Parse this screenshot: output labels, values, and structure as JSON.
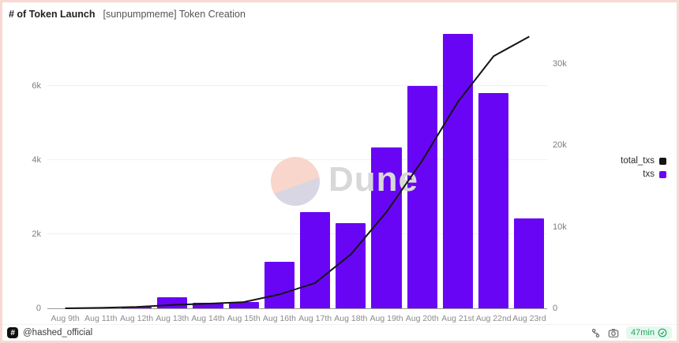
{
  "header": {
    "title": "# of Token Launch",
    "subtitle": "[sunpumpmeme] Token Creation"
  },
  "watermark": {
    "text": "Dune"
  },
  "chart_data": {
    "type": "bar",
    "title": "[sunpumpmeme] Token Creation",
    "categories": [
      "Aug 9th",
      "Aug 11th",
      "Aug 12th",
      "Aug 13th",
      "Aug 14th",
      "Aug 15th",
      "Aug 16th",
      "Aug 17th",
      "Aug 18th",
      "Aug 19th",
      "Aug 20th",
      "Aug 21st",
      "Aug 22nd",
      "Aug 23rd"
    ],
    "series": [
      {
        "name": "txs",
        "chart": "bar",
        "axis": "left",
        "color": "#6905f5",
        "values": [
          0,
          10,
          50,
          300,
          140,
          180,
          1250,
          2600,
          2300,
          4350,
          6000,
          7400,
          5800,
          2430
        ]
      },
      {
        "name": "total_txs",
        "chart": "line",
        "axis": "right",
        "color": "#141414",
        "values": [
          0,
          60,
          160,
          420,
          570,
          760,
          1700,
          3100,
          6600,
          11800,
          18100,
          25300,
          30900,
          33300
        ]
      }
    ],
    "left_axis": {
      "ticks": [
        "0",
        "2k",
        "4k",
        "6k"
      ],
      "tick_values": [
        0,
        2000,
        4000,
        6000
      ],
      "max": 7574
    },
    "right_axis": {
      "ticks": [
        "0",
        "10k",
        "20k",
        "30k"
      ],
      "tick_values": [
        0,
        10000,
        20000,
        30000
      ],
      "max": 34400
    },
    "legend": [
      {
        "label": "total_txs",
        "color": "#141414"
      },
      {
        "label": "txs",
        "color": "#6905f5"
      }
    ],
    "legend_position": "right",
    "grid": true
  },
  "footer": {
    "author": "@hashed_official",
    "badge_label": "47min"
  },
  "colors": {
    "bar_purple": "#6905f5",
    "line_black": "#141414",
    "frame_pink": "#f9d8d2",
    "badge_green": "#1ea860",
    "badge_bg": "#e6f7ee"
  }
}
